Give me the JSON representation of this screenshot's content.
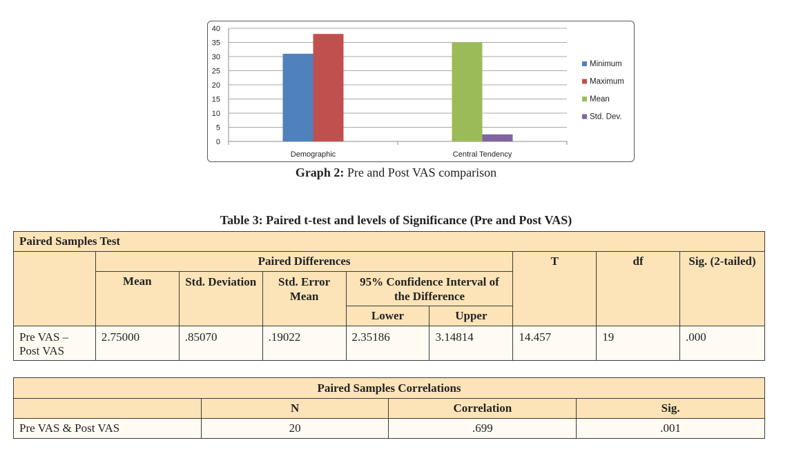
{
  "chart_data": {
    "type": "bar",
    "categories": [
      "Demographic",
      "Central Tendency"
    ],
    "series": [
      {
        "name": "Minimum",
        "color": "#4f81bd",
        "values": [
          31,
          null
        ]
      },
      {
        "name": "Maximum",
        "color": "#c0504d",
        "values": [
          38,
          null
        ]
      },
      {
        "name": "Mean",
        "color": "#9bbb59",
        "values": [
          null,
          35
        ]
      },
      {
        "name": "Std. Dev.",
        "color": "#8064a2",
        "values": [
          null,
          2.5
        ]
      }
    ],
    "yticks": [
      "0",
      "5",
      "10",
      "15",
      "20",
      "25",
      "30",
      "35",
      "40"
    ],
    "ylim": [
      0,
      40
    ],
    "legend_position": "right",
    "grid": true
  },
  "graph_caption": {
    "label": "Graph 2:",
    "text": " Pre and Post VAS comparison"
  },
  "table3": {
    "title": "Table 3: Paired t-test and levels of Significance (Pre and Post VAS)",
    "header": "Paired Samples Test",
    "paired_differences": "Paired Differences",
    "col_mean": "Mean",
    "col_std_dev": "Std. Deviation",
    "col_std_err": "Std. Error Mean",
    "col_ci": "95% Confidence Interval of the Difference",
    "col_lower": "Lower",
    "col_upper": "Upper",
    "col_t": "T",
    "col_df": "df",
    "col_sig": "Sig. (2-tailed)",
    "row": {
      "label": "Pre VAS – Post VAS",
      "mean": "2.75000",
      "std_dev": ".85070",
      "std_err": ".19022",
      "lower": "2.35186",
      "upper": "3.14814",
      "t": "14.457",
      "df": "19",
      "sig": ".000"
    }
  },
  "correlations": {
    "header": "Paired Samples Correlations",
    "col_n": "N",
    "col_correlation": "Correlation",
    "col_sig": "Sig.",
    "row": {
      "label": "Pre VAS & Post VAS",
      "n": "20",
      "correlation": ".699",
      "sig": ".001"
    }
  }
}
